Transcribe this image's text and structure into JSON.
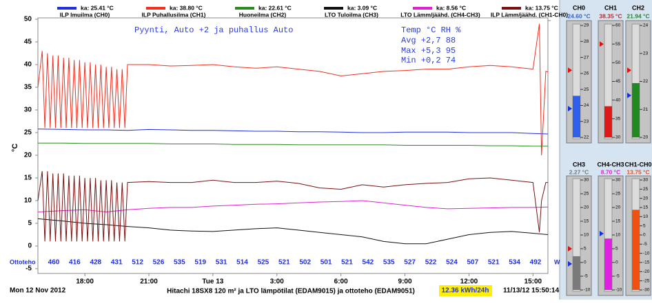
{
  "chart_data": {
    "type": "line",
    "ylabel": "°C",
    "xlim": [
      15.8,
      39.7
    ],
    "xticks": [
      {
        "value": 18,
        "label": "18:00"
      },
      {
        "value": 21,
        "label": "21:00"
      },
      {
        "value": 24,
        "label": "Tue 13"
      },
      {
        "value": 27,
        "label": "3:00"
      },
      {
        "value": 30,
        "label": "6:00"
      },
      {
        "value": 33,
        "label": "9:00"
      },
      {
        "value": 36,
        "label": "12:00"
      },
      {
        "value": 39,
        "label": "15:00"
      }
    ],
    "ylim": [
      -5,
      50
    ],
    "yticks": [
      -5,
      0,
      5,
      10,
      15,
      20,
      25,
      30,
      35,
      40,
      45,
      50
    ],
    "grid": false,
    "annotations": [
      "Pyynti, Auto +2 ja puhallus Auto",
      "Temp °C  RH %",
      "Avg +2,7 88",
      "Max +5,3 95",
      "Min +0,2 74"
    ],
    "series": [
      {
        "name": "ILP Imuilma (CH0)",
        "avg_label": "ka: 25.41 °C",
        "color": "#1f2fe0",
        "x": [
          15.8,
          17,
          18,
          19,
          20,
          21,
          22,
          23,
          24,
          25,
          26,
          27,
          28,
          29,
          30,
          31,
          32,
          33,
          34,
          35,
          36,
          37,
          38,
          39,
          39.7
        ],
        "values": [
          25.8,
          25.7,
          25.6,
          25.6,
          25.5,
          25.7,
          25.6,
          25.5,
          25.5,
          25.4,
          25.3,
          25.3,
          25.2,
          25.2,
          25.1,
          25,
          25,
          25.1,
          25.1,
          25.1,
          25,
          25,
          25,
          24.8,
          24.7
        ]
      },
      {
        "name": "ILP Puhallusilma (CH1)",
        "avg_label": "ka: 38.80 °C",
        "color": "#f03020",
        "x": [
          15.8,
          16,
          16.125,
          16.25,
          16.375,
          16.5,
          16.625,
          16.75,
          16.875,
          17,
          17.125,
          17.25,
          17.375,
          17.5,
          17.625,
          17.75,
          17.875,
          18,
          18.125,
          18.25,
          18.375,
          18.5,
          18.625,
          18.75,
          18.875,
          19,
          19.125,
          19.25,
          19.375,
          19.5,
          19.625,
          19.75,
          19.875,
          20,
          21,
          22,
          23,
          24,
          25,
          26,
          27,
          28,
          29,
          30,
          31,
          32,
          33,
          34,
          35,
          36,
          37,
          38,
          39,
          39.3,
          39.4,
          39.6,
          39.7
        ],
        "values": [
          35,
          43,
          26,
          42.5,
          26,
          42,
          26,
          42,
          26,
          41.5,
          26,
          41.5,
          26,
          41,
          26,
          41,
          26,
          40.5,
          26,
          40.5,
          26,
          40,
          26,
          40,
          26,
          39.5,
          26,
          39.5,
          26,
          39,
          26,
          39,
          26,
          40,
          40,
          39.7,
          39.8,
          40,
          39.5,
          39.2,
          39.5,
          39,
          38.5,
          37.5,
          38,
          38.5,
          38.7,
          39,
          39,
          39.5,
          39.8,
          39.5,
          39,
          49,
          20,
          38.5,
          38.4
        ]
      },
      {
        "name": "Huoneilma (CH2)",
        "avg_label": "ka: 22.61 °C",
        "color": "#2a8a1e",
        "x": [
          15.8,
          17,
          18,
          19,
          20,
          21,
          22,
          23,
          24,
          25,
          26,
          27,
          28,
          29,
          30,
          31,
          32,
          33,
          34,
          35,
          36,
          37,
          38,
          39,
          39.7
        ],
        "values": [
          22.7,
          22.7,
          22.6,
          22.6,
          22.6,
          22.6,
          22.5,
          22.5,
          22.5,
          22.4,
          22.4,
          22.4,
          22.3,
          22.3,
          22.3,
          22.3,
          22.3,
          22.2,
          22.2,
          22.2,
          22.2,
          22.1,
          22.1,
          22,
          22
        ]
      },
      {
        "name": "LTO Tuloilma (CH3)",
        "avg_label": "ka: 3.09 °C",
        "color": "#101010",
        "x": [
          15.8,
          17,
          18,
          19,
          20,
          21,
          22,
          23,
          24,
          25,
          26,
          27,
          28,
          29,
          30,
          31,
          32,
          33,
          34,
          35,
          36,
          37,
          38,
          39,
          39.7
        ],
        "values": [
          6,
          5.5,
          5,
          4.7,
          4.3,
          4,
          3.5,
          3.3,
          3.2,
          3.5,
          3.8,
          4,
          3.5,
          3,
          2.5,
          2,
          1,
          0.5,
          0.5,
          1.5,
          2.5,
          3,
          3.2,
          2.8,
          2.5
        ]
      },
      {
        "name": "LTO Lämm/jäähd. (CH4-CH3)",
        "avg_label": "ka: 8.56 °C",
        "color": "#e020d0",
        "x": [
          15.8,
          17,
          18,
          19,
          20,
          21,
          22,
          23,
          24,
          25,
          26,
          27,
          28,
          29,
          30,
          31,
          32,
          33,
          34,
          35,
          36,
          37,
          38,
          39,
          39.7
        ],
        "values": [
          7.5,
          7.8,
          8,
          7.5,
          8,
          8.3,
          8.5,
          8.5,
          8.8,
          9,
          9.2,
          9.3,
          9.5,
          9.7,
          9.8,
          10,
          9.5,
          9,
          8.5,
          8.2,
          8.3,
          8.4,
          8.5,
          8.5,
          8.6
        ]
      },
      {
        "name": "ILP Lämm/jäähd. (CH1-CH0)",
        "avg_label": "ka: 13.75 °C",
        "color": "#7a1010",
        "x": [
          15.8,
          16,
          16.125,
          16.25,
          16.375,
          16.5,
          16.625,
          16.75,
          16.875,
          17,
          17.125,
          17.25,
          17.375,
          17.5,
          17.625,
          17.75,
          17.875,
          18,
          18.125,
          18.25,
          18.375,
          18.5,
          18.625,
          18.75,
          18.875,
          19,
          19.125,
          19.25,
          19.375,
          19.5,
          19.625,
          19.75,
          19.875,
          20,
          21,
          22,
          23,
          24,
          25,
          26,
          27,
          28,
          29,
          30,
          31,
          32,
          33,
          34,
          35,
          36,
          37,
          38,
          39,
          39.3,
          39.4,
          39.6,
          39.7
        ],
        "values": [
          10,
          16.5,
          1,
          16.5,
          1,
          16,
          1,
          16,
          1,
          16,
          1,
          15.5,
          1,
          15.5,
          1,
          15.5,
          1,
          15,
          1,
          15,
          1,
          15,
          1,
          14.5,
          1,
          14.5,
          1,
          14.5,
          1,
          14,
          1,
          14,
          1,
          14,
          14.2,
          14,
          14,
          14.5,
          14,
          14,
          14.3,
          13.8,
          12.8,
          12.5,
          13.5,
          13,
          13.5,
          13.8,
          14,
          14.8,
          15,
          14.5,
          14,
          3,
          10,
          14,
          14
        ]
      }
    ]
  },
  "power_row": {
    "label": "Ottoteho",
    "unit": "W",
    "values": [
      460,
      416,
      428,
      431,
      512,
      526,
      535,
      519,
      531,
      514,
      525,
      521,
      502,
      501,
      521,
      542,
      535,
      527,
      522,
      524,
      507,
      521,
      534,
      492
    ]
  },
  "footer": {
    "date": "Mon 12 Nov 2012",
    "title": "Hitachi 18SX8 120 m² ja LTO lämpötilat (EDAM9015) ja ottoteho (EDAM9051)",
    "energy": "12.36 kWh/24h",
    "timestamp": "11/13/12 15:50:14"
  },
  "gauges": [
    {
      "label": "CH0",
      "value": 24.6,
      "value_label": "24.60 °C",
      "color": "#2f5ee8",
      "lim": [
        22,
        29
      ],
      "ticks": [
        22,
        23,
        24,
        25,
        26,
        27,
        28,
        29
      ],
      "markers": [
        {
          "color": "#e01010",
          "value": 26.2
        },
        {
          "color": "#1030e0",
          "value": 23.8
        }
      ]
    },
    {
      "label": "CH1",
      "value": 38.35,
      "value_label": "38.35 °C",
      "color": "#e01818",
      "lim": [
        30,
        60
      ],
      "ticks": [
        30,
        35,
        40,
        45,
        50,
        55,
        60
      ],
      "markers": [
        {
          "color": "#e01010",
          "value": 55
        }
      ]
    },
    {
      "label": "CH2",
      "value": 21.94,
      "value_label": "21.94 °C",
      "color": "#208a20",
      "lim": [
        20,
        24
      ],
      "ticks": [
        20,
        21,
        22,
        23,
        24
      ],
      "markers": [
        {
          "color": "#e01010",
          "value": 22.4
        },
        {
          "color": "#1030e0",
          "value": 21.5
        }
      ]
    },
    {
      "label": "CH3",
      "value": 2.27,
      "value_label": "2.27 °C",
      "color": "#7a7a7a",
      "lim": [
        -10,
        30
      ],
      "ticks": [
        -10,
        -5,
        0,
        5,
        10,
        15,
        20,
        25,
        30
      ],
      "markers": [
        {
          "color": "#e01010",
          "value": 5
        },
        {
          "color": "#1030e0",
          "value": -0.5
        }
      ]
    },
    {
      "label": "CH4-CH3",
      "value": 8.7,
      "value_label": "8.70 °C",
      "color": "#e020e0",
      "lim": [
        -10,
        30
      ],
      "ticks": [
        -10,
        -5,
        0,
        5,
        10,
        15,
        20,
        25,
        30
      ],
      "markers": [
        {
          "color": "#1030e0",
          "value": 10.5
        }
      ]
    },
    {
      "label": "CH1-CH0",
      "value": 13.75,
      "value_label": "13.75 °C",
      "color": "#f05010",
      "lim": [
        -30,
        30
      ],
      "ticks": [
        -30,
        -25,
        -20,
        -15,
        -10,
        -5,
        0,
        5,
        10,
        15,
        20,
        25,
        30
      ],
      "markers": []
    }
  ]
}
